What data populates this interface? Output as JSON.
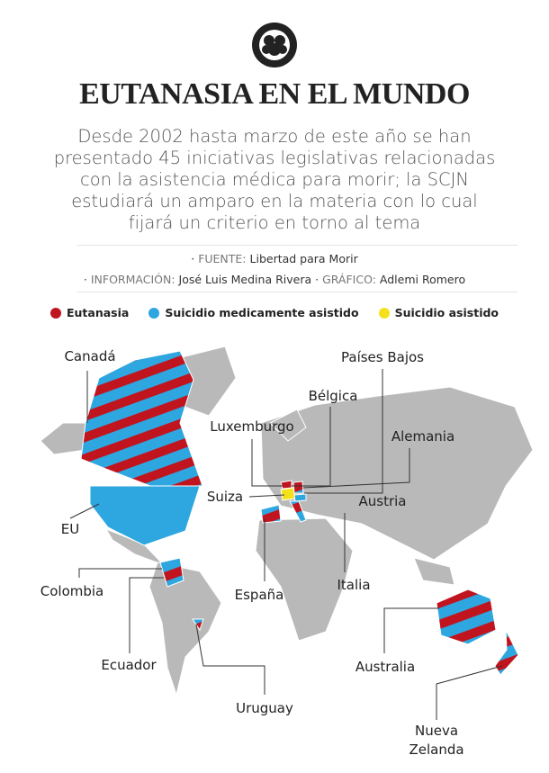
{
  "header": {
    "title": "EUTANASIA EN EL MUNDO",
    "subtitle": [
      "Desde 2002 hasta marzo de este año se han",
      "presentado 45 iniciativas legislativas relacionadas",
      "con la asistencia médica para morir; la SCJN",
      "estudiará un amparo en la materia con lo cual",
      "fijará un criterio en torno al tema"
    ]
  },
  "credits": {
    "source_label": "FUENTE:",
    "source": "Libertad para Morir",
    "info_label": "INFORMACIÓN:",
    "info": "José Luis Medina Rivera",
    "graphic_label": "GRÁFICO:",
    "graphic": "Adlemi Romero"
  },
  "legend": [
    {
      "label": "Eutanasia",
      "color": "#c0141f"
    },
    {
      "label": "Suicidio medicamente asistido",
      "color": "#2ea6e0"
    },
    {
      "label": "Suicidio asistido",
      "color": "#f4e11c"
    }
  ],
  "countries": [
    {
      "label": "Canadá"
    },
    {
      "label": "Países Bajos"
    },
    {
      "label": "Bélgica"
    },
    {
      "label": "Luxemburgo"
    },
    {
      "label": "Alemania"
    },
    {
      "label": "Suiza"
    },
    {
      "label": "EU"
    },
    {
      "label": "Austria"
    },
    {
      "label": "Colombia"
    },
    {
      "label": "España"
    },
    {
      "label": "Italia"
    },
    {
      "label": "Ecuador"
    },
    {
      "label": "Australia"
    },
    {
      "label": "Uruguay"
    },
    {
      "label": "Nueva Zelanda"
    }
  ]
}
